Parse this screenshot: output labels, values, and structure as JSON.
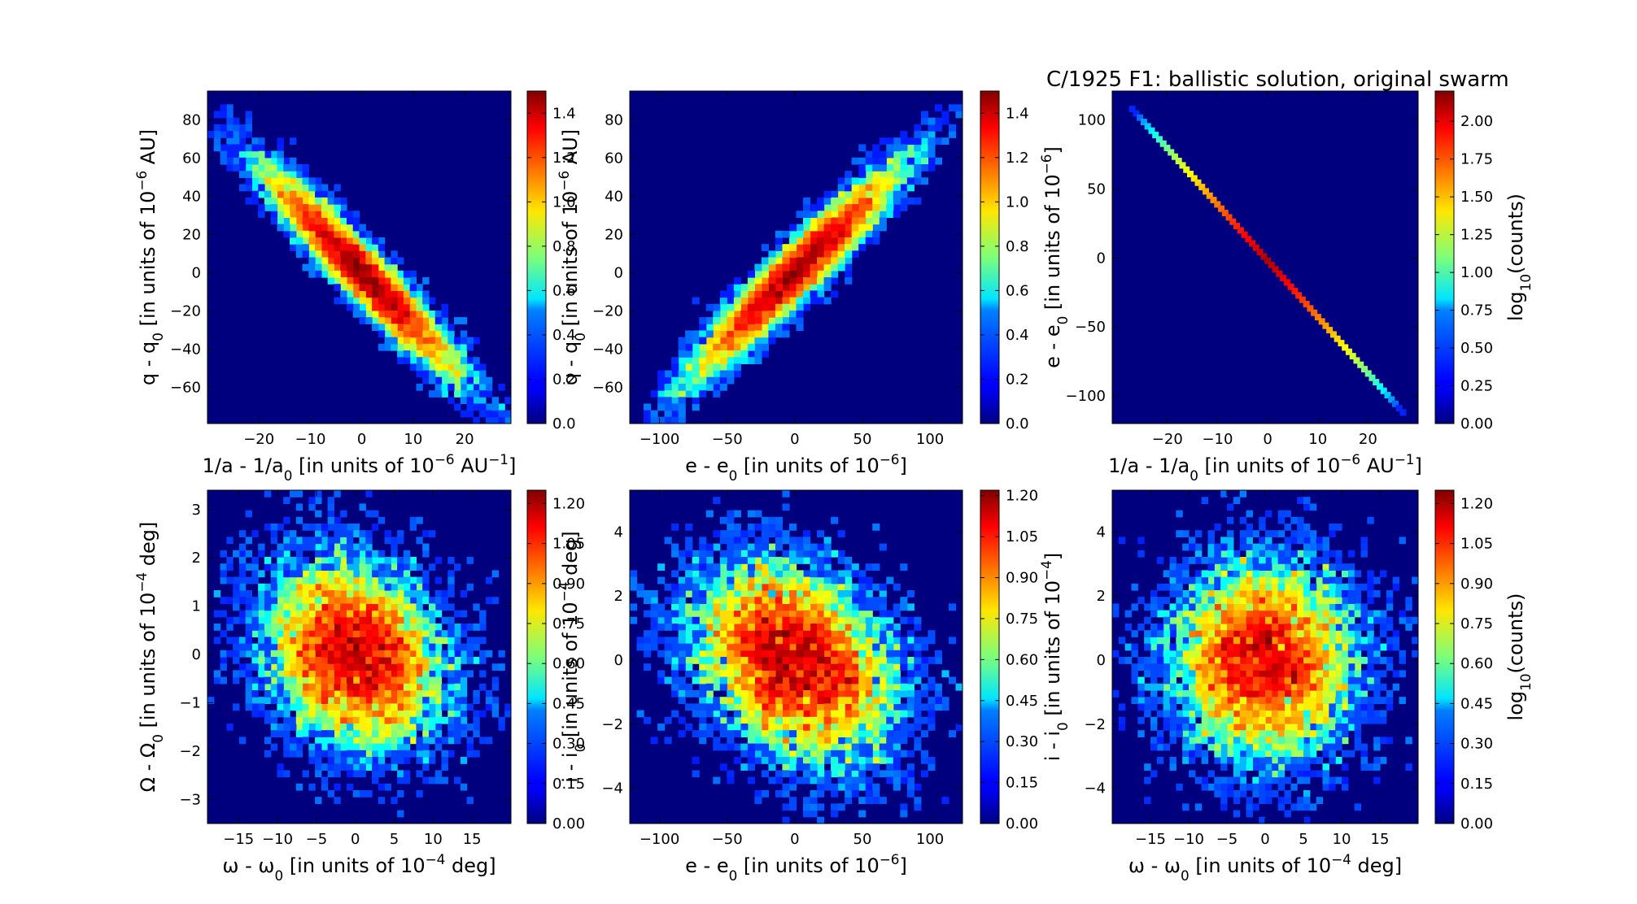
{
  "figure": {
    "title": "C/1925 F1:  ballistic solution, original swarm"
  },
  "colormap": "jet",
  "panel_background": "#00007f",
  "chart_data": [
    {
      "id": "p1",
      "type": "hexbin",
      "title": "",
      "xlabel": {
        "pre": "1/a - 1/a",
        "sub": "0",
        "mid": " [in units of 10",
        "sup": "−6",
        "post": " AU",
        "sup2": "−1",
        "end": "]"
      },
      "ylabel": {
        "pre": "q - q",
        "sub": "0",
        "mid": "  [in units of 10",
        "sup": "−6",
        "post": " AU]"
      },
      "xlim": [
        -30,
        29
      ],
      "ylim": [
        -79,
        95
      ],
      "xticks": [
        -20,
        -10,
        0,
        10,
        20
      ],
      "yticks": [
        -60,
        -40,
        -20,
        0,
        20,
        40,
        60,
        80
      ],
      "correlation": -0.95,
      "spread": {
        "sx": 9.5,
        "sy": 27
      },
      "seed": 11,
      "colorbar": {
        "min": 0,
        "max": 1.5,
        "ticks": [
          "0.0",
          "0.2",
          "0.4",
          "0.6",
          "0.8",
          "1.0",
          "1.2",
          "1.4"
        ],
        "tick_values": [
          0,
          0.2,
          0.4,
          0.6,
          0.8,
          1.0,
          1.2,
          1.4
        ],
        "label": ""
      }
    },
    {
      "id": "p2",
      "type": "hexbin",
      "title": "",
      "xlabel": {
        "pre": "e - e",
        "sub": "0",
        "mid": " [in units of 10",
        "sup": "−6",
        "post": "]"
      },
      "ylabel": {
        "pre": "q - q",
        "sub": "0",
        "mid": "  [in units of 10",
        "sup": "−6",
        "post": " AU]"
      },
      "xlim": [
        -122,
        124
      ],
      "ylim": [
        -79,
        95
      ],
      "xticks": [
        -100,
        -50,
        0,
        50,
        100
      ],
      "yticks": [
        -60,
        -40,
        -20,
        0,
        20,
        40,
        60,
        80
      ],
      "correlation": 0.95,
      "spread": {
        "sx": 38,
        "sy": 27
      },
      "seed": 23,
      "colorbar": {
        "min": 0,
        "max": 1.5,
        "ticks": [
          "0.0",
          "0.2",
          "0.4",
          "0.6",
          "0.8",
          "1.0",
          "1.2",
          "1.4"
        ],
        "tick_values": [
          0,
          0.2,
          0.4,
          0.6,
          0.8,
          1.0,
          1.2,
          1.4
        ],
        "label": ""
      }
    },
    {
      "id": "p3",
      "type": "hexbin",
      "title": "",
      "xlabel": {
        "pre": "1/a - 1/a",
        "sub": "0",
        "mid": "  [in units of 10",
        "sup": "−6",
        "post": " AU",
        "sup2": "−1",
        "end": "]"
      },
      "ylabel": {
        "pre": "e - e",
        "sub": "0",
        "mid": "  [in units of 10",
        "sup": "−6",
        "post": "]"
      },
      "xlim": [
        -31,
        30
      ],
      "ylim": [
        -120,
        121
      ],
      "xticks": [
        -20,
        -10,
        0,
        10,
        20
      ],
      "yticks": [
        -100,
        -50,
        0,
        50,
        100
      ],
      "line": {
        "x0": -27,
        "y0": 108,
        "x1": 27,
        "y1": -112
      },
      "colorbar": {
        "min": 0,
        "max": 2.2,
        "ticks": [
          "0.00",
          "0.25",
          "0.50",
          "0.75",
          "1.00",
          "1.25",
          "1.50",
          "1.75",
          "2.00"
        ],
        "tick_values": [
          0,
          0.25,
          0.5,
          0.75,
          1.0,
          1.25,
          1.5,
          1.75,
          2.0
        ],
        "label": "log10(counts)",
        "label_pre": "log",
        "label_sub": "10",
        "label_post": "(counts)"
      }
    },
    {
      "id": "p4",
      "type": "hexbin",
      "title": "",
      "xlabel": {
        "pre": "ω - ω",
        "sub": "0",
        "mid": "  [in units of 10",
        "sup": "−4",
        "post": "  deg]"
      },
      "ylabel": {
        "pre": "Ω - Ω",
        "sub": "0",
        "mid": "  [in units of 10",
        "sup": "−4",
        "post": " deg]"
      },
      "xlim": [
        -19,
        20
      ],
      "ylim": [
        -3.5,
        3.4
      ],
      "xticks": [
        -15,
        -10,
        -5,
        0,
        5,
        10,
        15
      ],
      "yticks": [
        -3,
        -2,
        -1,
        0,
        1,
        2,
        3
      ],
      "correlation": -0.2,
      "spread": {
        "sx": 6,
        "sy": 1.0
      },
      "seed": 37,
      "colorbar": {
        "min": 0,
        "max": 1.25,
        "ticks": [
          "0.00",
          "0.15",
          "0.30",
          "0.45",
          "0.60",
          "0.75",
          "0.90",
          "1.05",
          "1.20"
        ],
        "tick_values": [
          0,
          0.15,
          0.3,
          0.45,
          0.6,
          0.75,
          0.9,
          1.05,
          1.2
        ],
        "label": ""
      }
    },
    {
      "id": "p5",
      "type": "hexbin",
      "title": "",
      "xlabel": {
        "pre": "e - e",
        "sub": "0",
        "mid": " [in units of 10",
        "sup": "−6",
        "post": "]"
      },
      "ylabel": {
        "pre": "i - i",
        "sub": "0",
        "mid": "  [in units of 10",
        "sup": "−4",
        "post": "  deg]"
      },
      "xlim": [
        -122,
        124
      ],
      "ylim": [
        -5.1,
        5.3
      ],
      "xticks": [
        -100,
        -50,
        0,
        50,
        100
      ],
      "yticks": [
        -4,
        -2,
        0,
        2,
        4
      ],
      "correlation": -0.3,
      "spread": {
        "sx": 38,
        "sy": 1.55
      },
      "seed": 53,
      "colorbar": {
        "min": 0,
        "max": 1.22,
        "ticks": [
          "0.00",
          "0.15",
          "0.30",
          "0.45",
          "0.60",
          "0.75",
          "0.90",
          "1.05",
          "1.20"
        ],
        "tick_values": [
          0,
          0.15,
          0.3,
          0.45,
          0.6,
          0.75,
          0.9,
          1.05,
          1.2
        ],
        "label": ""
      }
    },
    {
      "id": "p6",
      "type": "hexbin",
      "title": "",
      "xlabel": {
        "pre": "ω - ω",
        "sub": "0",
        "mid": "  [in units of 10",
        "sup": "−4",
        "post": "  deg]"
      },
      "ylabel": {
        "pre": "i - i",
        "sub": "0",
        "mid": "  [in units of 10",
        "sup": "−4",
        "post": "]"
      },
      "xlim": [
        -20,
        20
      ],
      "ylim": [
        -5.1,
        5.3
      ],
      "xticks": [
        -15,
        -10,
        -5,
        0,
        5,
        10,
        15
      ],
      "yticks": [
        -4,
        -2,
        0,
        2,
        4
      ],
      "correlation": 0.0,
      "spread": {
        "sx": 6.2,
        "sy": 1.55
      },
      "seed": 71,
      "colorbar": {
        "min": 0,
        "max": 1.25,
        "ticks": [
          "0.00",
          "0.15",
          "0.30",
          "0.45",
          "0.60",
          "0.75",
          "0.90",
          "1.05",
          "1.20"
        ],
        "tick_values": [
          0,
          0.15,
          0.3,
          0.45,
          0.6,
          0.75,
          0.9,
          1.05,
          1.2
        ],
        "label": "log10(counts)",
        "label_pre": "log",
        "label_sub": "10",
        "label_post": "(counts)"
      }
    }
  ]
}
